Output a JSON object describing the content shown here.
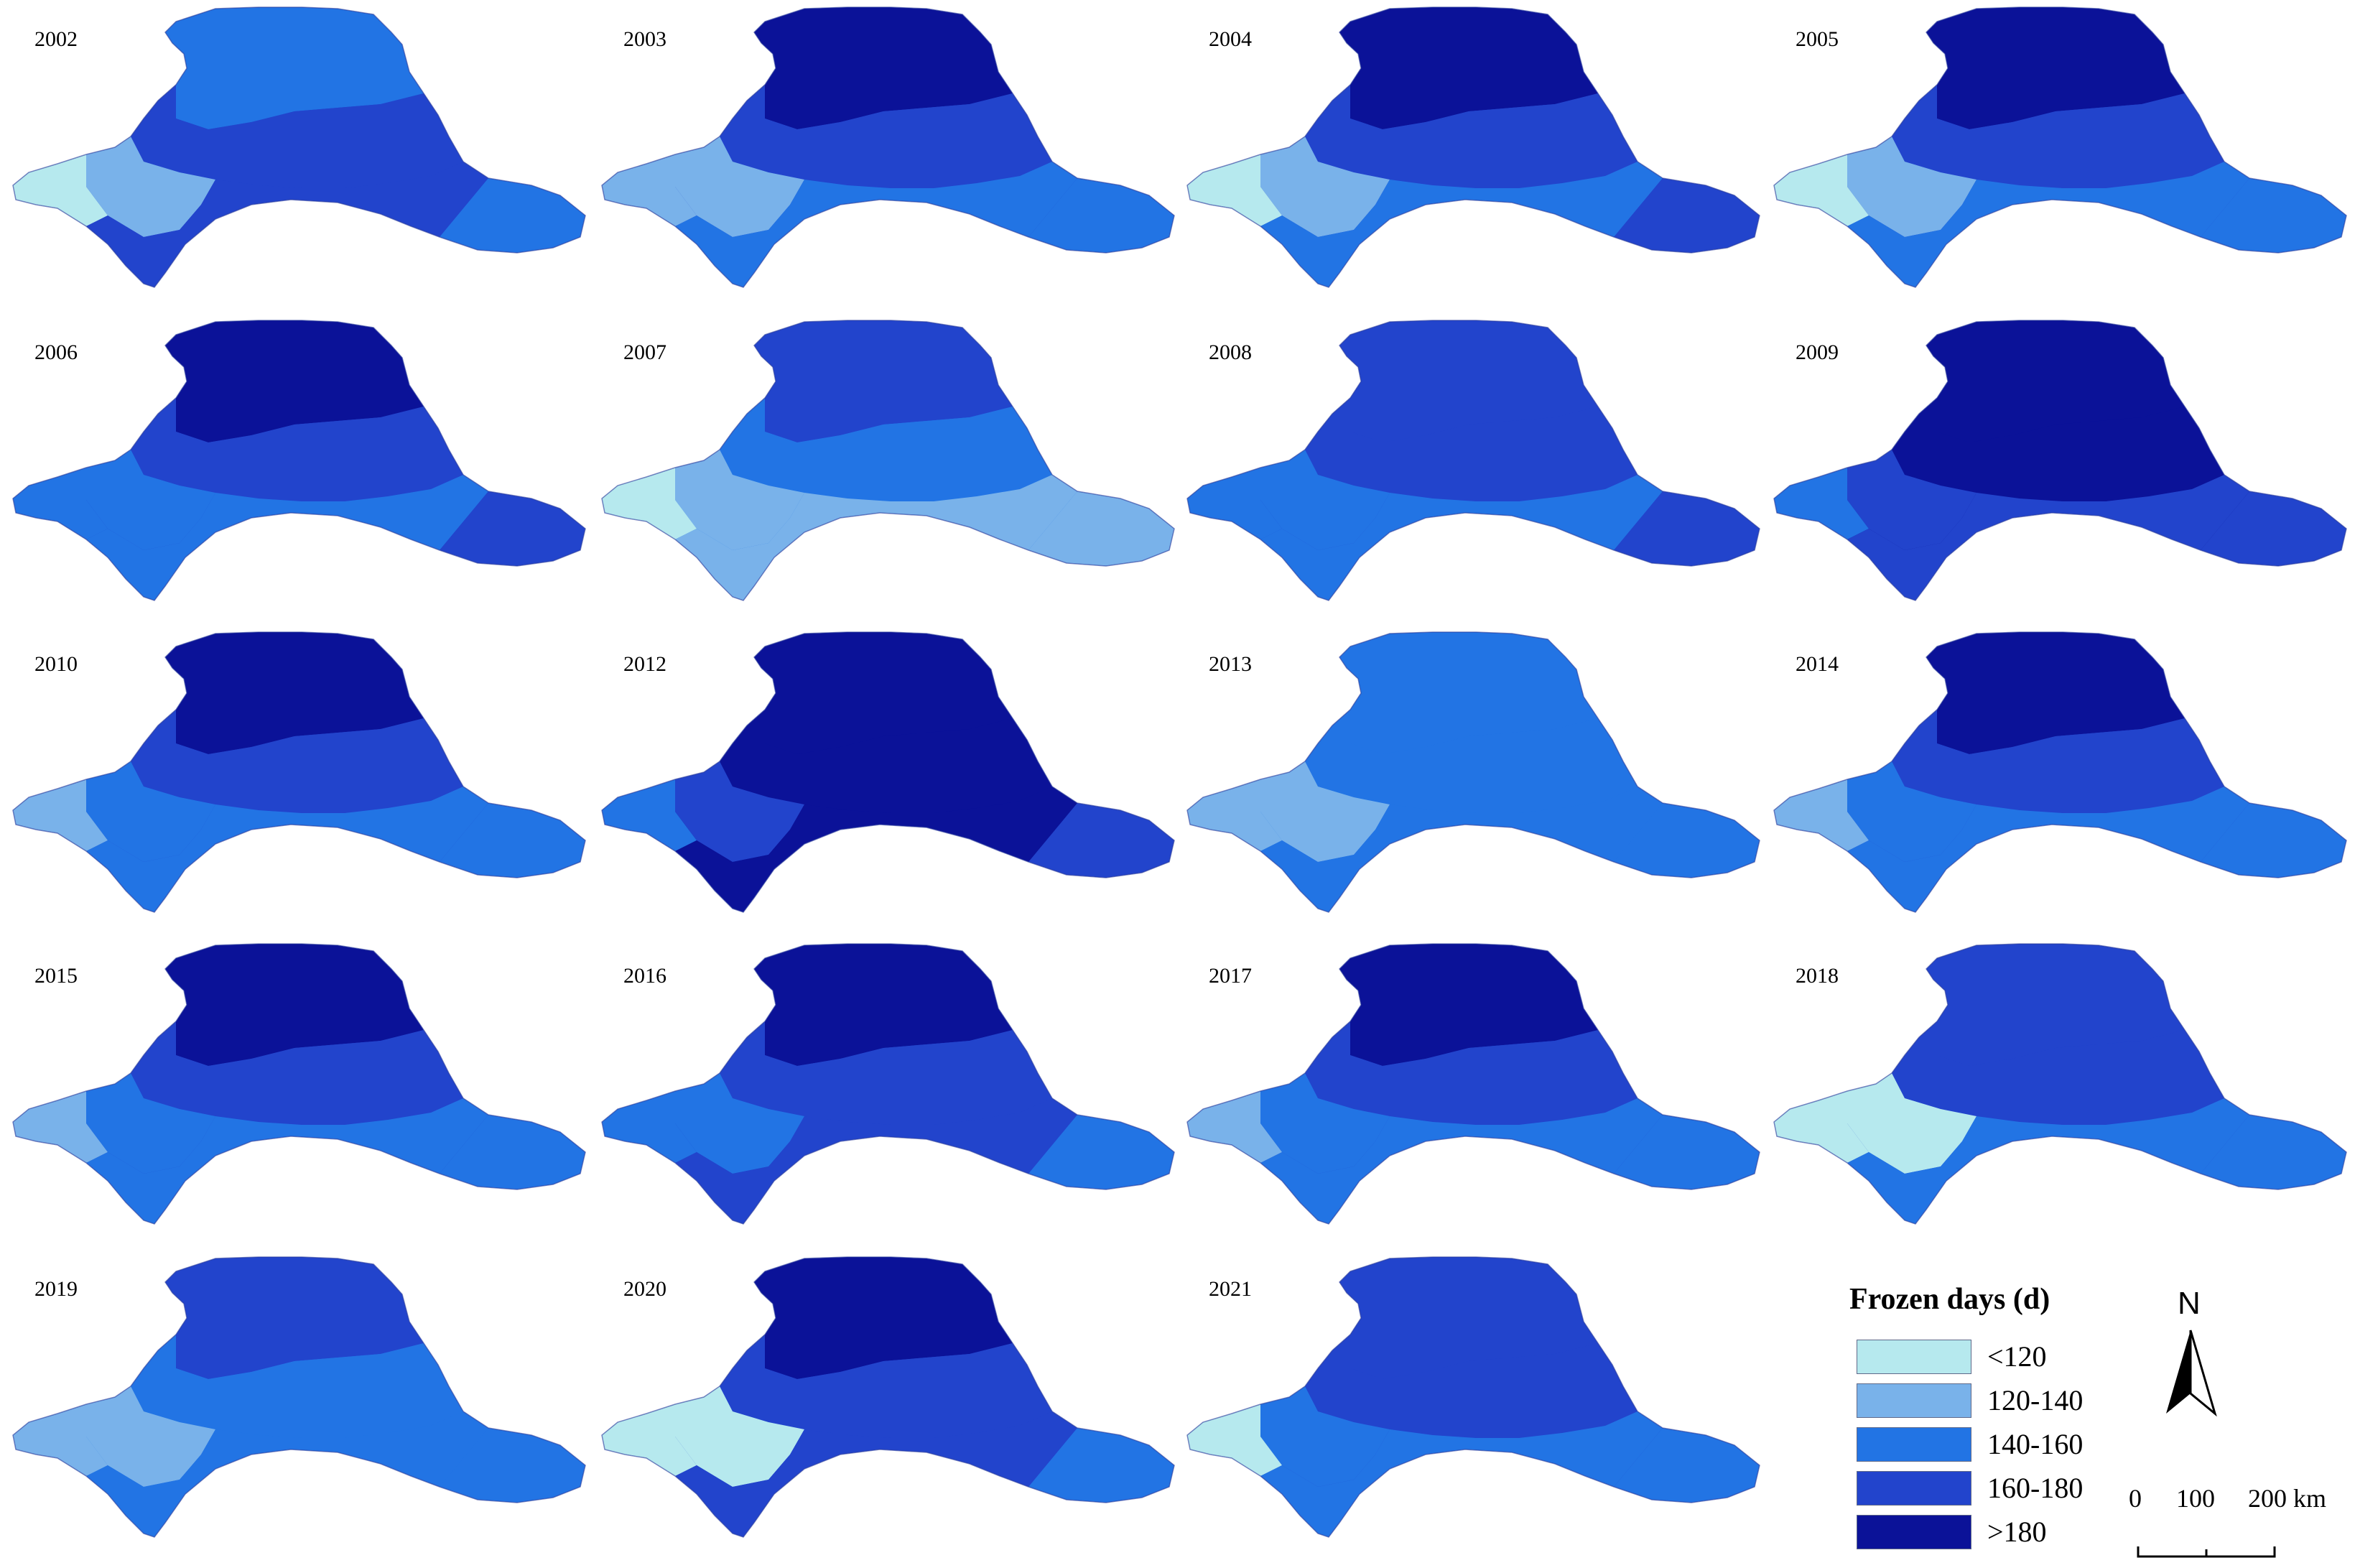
{
  "panels": [
    {
      "year": "2002",
      "zones": [
        "#2274e4",
        "#2244cc",
        "#79b2ea",
        "#b6e9ee",
        "#2244cc",
        "#2274e4"
      ]
    },
    {
      "year": "2003",
      "zones": [
        "#0b1298",
        "#2244cc",
        "#79b2ea",
        "#79b2ea",
        "#2274e4",
        "#2274e4"
      ]
    },
    {
      "year": "2004",
      "zones": [
        "#0b1298",
        "#2244cc",
        "#79b2ea",
        "#b6e9ee",
        "#2274e4",
        "#2244cc"
      ]
    },
    {
      "year": "2005",
      "zones": [
        "#0b1298",
        "#2244cc",
        "#79b2ea",
        "#b6e9ee",
        "#2274e4",
        "#2274e4"
      ]
    },
    {
      "year": "2006",
      "zones": [
        "#0b1298",
        "#2244cc",
        "#2274e4",
        "#2274e4",
        "#2274e4",
        "#2244cc"
      ]
    },
    {
      "year": "2007",
      "zones": [
        "#2244cc",
        "#2274e4",
        "#79b2ea",
        "#b6e9ee",
        "#79b2ea",
        "#79b2ea"
      ]
    },
    {
      "year": "2008",
      "zones": [
        "#2244cc",
        "#2244cc",
        "#2274e4",
        "#2274e4",
        "#2274e4",
        "#2244cc"
      ]
    },
    {
      "year": "2009",
      "zones": [
        "#0b1298",
        "#0b1298",
        "#2244cc",
        "#2274e4",
        "#2244cc",
        "#2244cc"
      ]
    },
    {
      "year": "2010",
      "zones": [
        "#0b1298",
        "#2244cc",
        "#2274e4",
        "#79b2ea",
        "#2274e4",
        "#2274e4"
      ]
    },
    {
      "year": "2012",
      "zones": [
        "#0b1298",
        "#0b1298",
        "#2244cc",
        "#2274e4",
        "#0b1298",
        "#2244cc"
      ]
    },
    {
      "year": "2013",
      "zones": [
        "#2274e4",
        "#2274e4",
        "#79b2ea",
        "#79b2ea",
        "#2274e4",
        "#2274e4"
      ]
    },
    {
      "year": "2014",
      "zones": [
        "#0b1298",
        "#2244cc",
        "#2274e4",
        "#79b2ea",
        "#2274e4",
        "#2274e4"
      ]
    },
    {
      "year": "2015",
      "zones": [
        "#0b1298",
        "#2244cc",
        "#2274e4",
        "#79b2ea",
        "#2274e4",
        "#2274e4"
      ]
    },
    {
      "year": "2016",
      "zones": [
        "#0b1298",
        "#2244cc",
        "#2274e4",
        "#2274e4",
        "#2244cc",
        "#2274e4"
      ]
    },
    {
      "year": "2017",
      "zones": [
        "#0b1298",
        "#2244cc",
        "#2274e4",
        "#79b2ea",
        "#2274e4",
        "#2274e4"
      ]
    },
    {
      "year": "2018",
      "zones": [
        "#2244cc",
        "#2244cc",
        "#b6e9ee",
        "#b6e9ee",
        "#2274e4",
        "#2274e4"
      ]
    },
    {
      "year": "2019",
      "zones": [
        "#2244cc",
        "#2274e4",
        "#79b2ea",
        "#79b2ea",
        "#2274e4",
        "#2274e4"
      ]
    },
    {
      "year": "2020",
      "zones": [
        "#0b1298",
        "#2244cc",
        "#b6e9ee",
        "#b6e9ee",
        "#2244cc",
        "#2274e4"
      ]
    },
    {
      "year": "2021",
      "zones": [
        "#2244cc",
        "#2244cc",
        "#2274e4",
        "#b6e9ee",
        "#2274e4",
        "#2274e4"
      ]
    }
  ],
  "legend": {
    "title": "Frozen days (d)",
    "classes": [
      {
        "label": "<120",
        "color": "#b6e9ee"
      },
      {
        "label": "120-140",
        "color": "#79b2ea"
      },
      {
        "label": "140-160",
        "color": "#2274e4"
      },
      {
        "label": "160-180",
        "color": "#2244cc"
      },
      {
        "label": ">180",
        "color": "#0b1298"
      }
    ]
  },
  "north_arrow": {
    "label": "N"
  },
  "scale_bar": {
    "ticks": [
      "0",
      "100",
      "200 km"
    ]
  }
}
